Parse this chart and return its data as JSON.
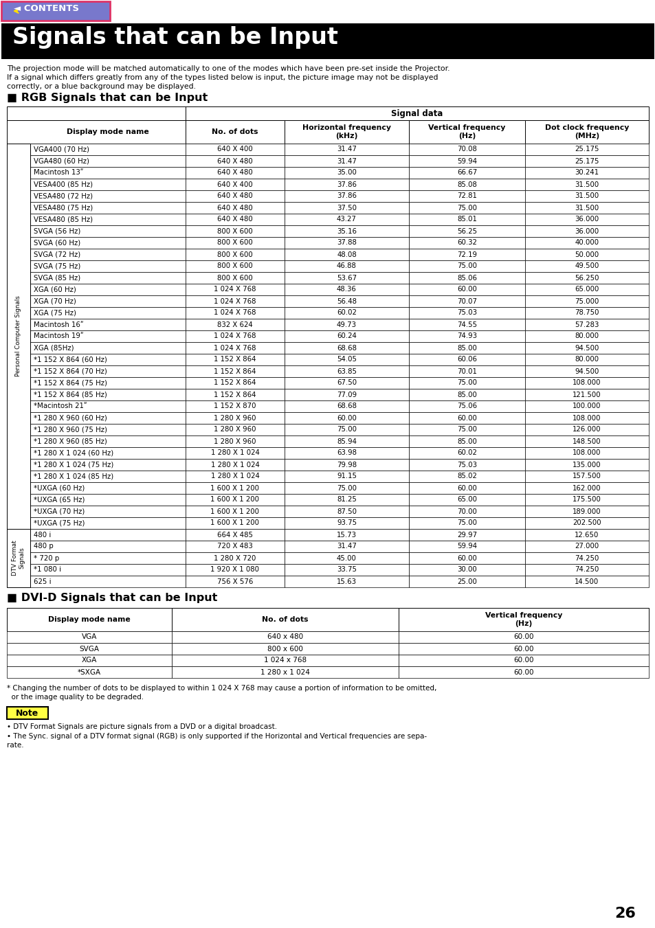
{
  "title": "Signals that can be Input",
  "intro_text1": "The projection mode will be matched automatically to one of the modes which have been pre-set inside the Projector.",
  "intro_text2": "If a signal which differs greatly from any of the types listed below is input, the picture image may not be displayed",
  "intro_text3": "correctly, or a blue background may be displayed.",
  "rgb_section_title": "RGB Signals that can be Input",
  "signal_data_header": "Signal data",
  "rgb_col0_header": "Display mode name",
  "rgb_col1_header": "No. of dots",
  "rgb_col2_header": "Horizontal frequency\n(kHz)",
  "rgb_col3_header": "Vertical frequency\n(Hz)",
  "rgb_col4_header": "Dot clock frequency\n(MHz)",
  "personal_label": "Personal Computer Signals",
  "dtv_label": "DTV Format\nSignals",
  "personal_rows": [
    [
      "VGA400 (70 Hz)",
      "640 X 400",
      "31.47",
      "70.08",
      "25.175"
    ],
    [
      "VGA480 (60 Hz)",
      "640 X 480",
      "31.47",
      "59.94",
      "25.175"
    ],
    [
      "Macintosh 13ʺ",
      "640 X 480",
      "35.00",
      "66.67",
      "30.241"
    ],
    [
      "VESA400 (85 Hz)",
      "640 X 400",
      "37.86",
      "85.08",
      "31.500"
    ],
    [
      "VESA480 (72 Hz)",
      "640 X 480",
      "37.86",
      "72.81",
      "31.500"
    ],
    [
      "VESA480 (75 Hz)",
      "640 X 480",
      "37.50",
      "75.00",
      "31.500"
    ],
    [
      "VESA480 (85 Hz)",
      "640 X 480",
      "43.27",
      "85.01",
      "36.000"
    ],
    [
      "SVGA (56 Hz)",
      "800 X 600",
      "35.16",
      "56.25",
      "36.000"
    ],
    [
      "SVGA (60 Hz)",
      "800 X 600",
      "37.88",
      "60.32",
      "40.000"
    ],
    [
      "SVGA (72 Hz)",
      "800 X 600",
      "48.08",
      "72.19",
      "50.000"
    ],
    [
      "SVGA (75 Hz)",
      "800 X 600",
      "46.88",
      "75.00",
      "49.500"
    ],
    [
      "SVGA (85 Hz)",
      "800 X 600",
      "53.67",
      "85.06",
      "56.250"
    ],
    [
      "XGA (60 Hz)",
      "1 024 X 768",
      "48.36",
      "60.00",
      "65.000"
    ],
    [
      "XGA (70 Hz)",
      "1 024 X 768",
      "56.48",
      "70.07",
      "75.000"
    ],
    [
      "XGA (75 Hz)",
      "1 024 X 768",
      "60.02",
      "75.03",
      "78.750"
    ],
    [
      "Macintosh 16ʺ",
      "832 X 624",
      "49.73",
      "74.55",
      "57.283"
    ],
    [
      "Macintosh 19ʺ",
      "1 024 X 768",
      "60.24",
      "74.93",
      "80.000"
    ],
    [
      "XGA (85Hz)",
      "1 024 X 768",
      "68.68",
      "85.00",
      "94.500"
    ],
    [
      "*1 152 X 864 (60 Hz)",
      "1 152 X 864",
      "54.05",
      "60.06",
      "80.000"
    ],
    [
      "*1 152 X 864 (70 Hz)",
      "1 152 X 864",
      "63.85",
      "70.01",
      "94.500"
    ],
    [
      "*1 152 X 864 (75 Hz)",
      "1 152 X 864",
      "67.50",
      "75.00",
      "108.000"
    ],
    [
      "*1 152 X 864 (85 Hz)",
      "1 152 X 864",
      "77.09",
      "85.00",
      "121.500"
    ],
    [
      "*Macintosh 21ʺ",
      "1 152 X 870",
      "68.68",
      "75.06",
      "100.000"
    ],
    [
      "*1 280 X 960 (60 Hz)",
      "1 280 X 960",
      "60.00",
      "60.00",
      "108.000"
    ],
    [
      "*1 280 X 960 (75 Hz)",
      "1 280 X 960",
      "75.00",
      "75.00",
      "126.000"
    ],
    [
      "*1 280 X 960 (85 Hz)",
      "1 280 X 960",
      "85.94",
      "85.00",
      "148.500"
    ],
    [
      "*1 280 X 1 024 (60 Hz)",
      "1 280 X 1 024",
      "63.98",
      "60.02",
      "108.000"
    ],
    [
      "*1 280 X 1 024 (75 Hz)",
      "1 280 X 1 024",
      "79.98",
      "75.03",
      "135.000"
    ],
    [
      "*1 280 X 1 024 (85 Hz)",
      "1 280 X 1 024",
      "91.15",
      "85.02",
      "157.500"
    ],
    [
      "*UXGA (60 Hz)",
      "1 600 X 1 200",
      "75.00",
      "60.00",
      "162.000"
    ],
    [
      "*UXGA (65 Hz)",
      "1 600 X 1 200",
      "81.25",
      "65.00",
      "175.500"
    ],
    [
      "*UXGA (70 Hz)",
      "1 600 X 1 200",
      "87.50",
      "70.00",
      "189.000"
    ],
    [
      "*UXGA (75 Hz)",
      "1 600 X 1 200",
      "93.75",
      "75.00",
      "202.500"
    ]
  ],
  "dtv_rows": [
    [
      "480 i",
      "664 X 485",
      "15.73",
      "29.97",
      "12.650"
    ],
    [
      "480 p",
      "720 X 483",
      "31.47",
      "59.94",
      "27.000"
    ],
    [
      "* 720 p",
      "1 280 X 720",
      "45.00",
      "60.00",
      "74.250"
    ],
    [
      "*1 080 i",
      "1 920 X 1 080",
      "33.75",
      "30.00",
      "74.250"
    ],
    [
      "625 i",
      "756 X 576",
      "15.63",
      "25.00",
      "14.500"
    ]
  ],
  "dvi_section_title": "DVI-D Signals that can be Input",
  "dvi_col0_header": "Display mode name",
  "dvi_col1_header": "No. of dots",
  "dvi_col2_header": "Vertical frequency\n(Hz)",
  "dvi_rows": [
    [
      "VGA",
      "640 x 480",
      "60.00"
    ],
    [
      "SVGA",
      "800 x 600",
      "60.00"
    ],
    [
      "XGA",
      "1 024 x 768",
      "60.00"
    ],
    [
      "*SXGA",
      "1 280 x 1 024",
      "60.00"
    ]
  ],
  "footnote1": "* Changing the number of dots to be displayed to within 1 024 X 768 may cause a portion of information to be omitted,",
  "footnote2": "  or the image quality to be degraded.",
  "note_title": "Note",
  "note_bullet1": "• DTV Format Signals are picture signals from a DVD or a digital broadcast.",
  "note_bullet2a": "• The Sync. signal of a DTV format signal (RGB) is only supported if the Horizontal and Vertical frequencies are sepa-",
  "note_bullet2b": "rate.",
  "page_number": "26"
}
